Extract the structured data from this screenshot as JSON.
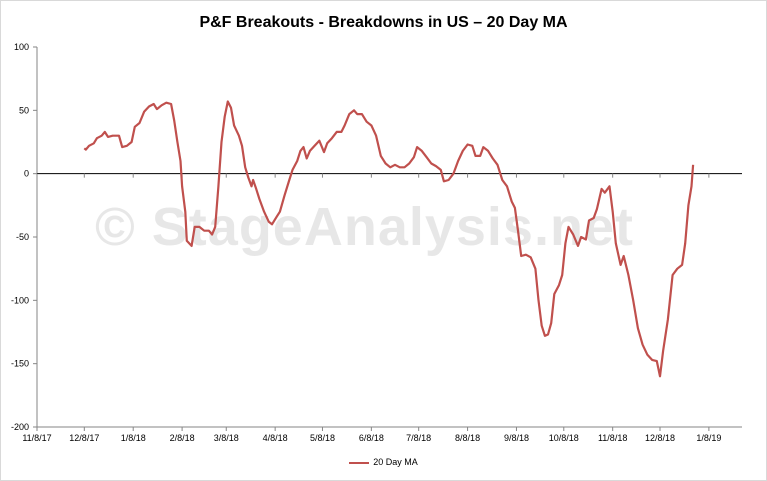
{
  "chart_data": {
    "type": "line",
    "title": "P&F Breakouts - Breakdowns in US – 20 Day MA",
    "watermark": "© StageAnalysis.net",
    "xlabel": "",
    "ylabel": "",
    "ylim": [
      -200,
      100
    ],
    "yticks": [
      100,
      50,
      0,
      -50,
      -100,
      -150,
      -200
    ],
    "xlim": [
      "2017-11-08",
      "2019-01-29"
    ],
    "xticks": [
      "11/8/17",
      "12/8/17",
      "1/8/18",
      "2/8/18",
      "3/8/18",
      "4/8/18",
      "5/8/18",
      "6/8/18",
      "7/8/18",
      "8/8/18",
      "9/8/18",
      "10/8/18",
      "11/8/18",
      "12/8/18",
      "1/8/19"
    ],
    "grid": false,
    "legend_position": "bottom",
    "color": "#c0504d",
    "series": [
      {
        "name": "20 Day MA",
        "points": [
          [
            "2017-12-08",
            20
          ],
          [
            "2017-12-09",
            19
          ],
          [
            "2017-12-11",
            22
          ],
          [
            "2017-12-14",
            24
          ],
          [
            "2017-12-16",
            28
          ],
          [
            "2017-12-19",
            30
          ],
          [
            "2017-12-21",
            33
          ],
          [
            "2017-12-23",
            29
          ],
          [
            "2017-12-26",
            30
          ],
          [
            "2017-12-30",
            30
          ],
          [
            "2018-01-01",
            21
          ],
          [
            "2018-01-04",
            22
          ],
          [
            "2018-01-07",
            25
          ],
          [
            "2018-01-09",
            37
          ],
          [
            "2018-01-12",
            40
          ],
          [
            "2018-01-15",
            49
          ],
          [
            "2018-01-18",
            53
          ],
          [
            "2018-01-21",
            55
          ],
          [
            "2018-01-23",
            51
          ],
          [
            "2018-01-26",
            54
          ],
          [
            "2018-01-29",
            56
          ],
          [
            "2018-02-01",
            55
          ],
          [
            "2018-02-03",
            42
          ],
          [
            "2018-02-05",
            25
          ],
          [
            "2018-02-07",
            10
          ],
          [
            "2018-02-08",
            -10
          ],
          [
            "2018-02-10",
            -30
          ],
          [
            "2018-02-11",
            -53
          ],
          [
            "2018-02-14",
            -57
          ],
          [
            "2018-02-16",
            -42
          ],
          [
            "2018-02-19",
            -42
          ],
          [
            "2018-02-22",
            -45
          ],
          [
            "2018-02-25",
            -45
          ],
          [
            "2018-02-27",
            -48
          ],
          [
            "2018-03-01",
            -42
          ],
          [
            "2018-03-03",
            -10
          ],
          [
            "2018-03-05",
            25
          ],
          [
            "2018-03-07",
            45
          ],
          [
            "2018-03-09",
            57
          ],
          [
            "2018-03-11",
            52
          ],
          [
            "2018-03-13",
            38
          ],
          [
            "2018-03-16",
            30
          ],
          [
            "2018-03-18",
            22
          ],
          [
            "2018-03-20",
            5
          ],
          [
            "2018-03-22",
            -3
          ],
          [
            "2018-03-24",
            -10
          ],
          [
            "2018-03-25",
            -5
          ],
          [
            "2018-03-27",
            -12
          ],
          [
            "2018-03-29",
            -20
          ],
          [
            "2018-04-01",
            -30
          ],
          [
            "2018-04-04",
            -38
          ],
          [
            "2018-04-06",
            -40
          ],
          [
            "2018-04-09",
            -34
          ],
          [
            "2018-04-11",
            -30
          ],
          [
            "2018-04-14",
            -17
          ],
          [
            "2018-04-17",
            -5
          ],
          [
            "2018-04-19",
            3
          ],
          [
            "2018-04-22",
            10
          ],
          [
            "2018-04-24",
            18
          ],
          [
            "2018-04-26",
            21
          ],
          [
            "2018-04-28",
            12
          ],
          [
            "2018-04-30",
            18
          ],
          [
            "2018-05-03",
            22
          ],
          [
            "2018-05-06",
            26
          ],
          [
            "2018-05-09",
            17
          ],
          [
            "2018-05-11",
            24
          ],
          [
            "2018-05-14",
            28
          ],
          [
            "2018-05-17",
            33
          ],
          [
            "2018-05-20",
            33
          ],
          [
            "2018-05-22",
            38
          ],
          [
            "2018-05-25",
            47
          ],
          [
            "2018-05-28",
            50
          ],
          [
            "2018-05-30",
            47
          ],
          [
            "2018-06-02",
            47
          ],
          [
            "2018-06-05",
            41
          ],
          [
            "2018-06-08",
            38
          ],
          [
            "2018-06-11",
            30
          ],
          [
            "2018-06-14",
            14
          ],
          [
            "2018-06-17",
            8
          ],
          [
            "2018-06-20",
            5
          ],
          [
            "2018-06-23",
            7
          ],
          [
            "2018-06-26",
            5
          ],
          [
            "2018-06-29",
            5
          ],
          [
            "2018-07-02",
            8
          ],
          [
            "2018-07-05",
            13
          ],
          [
            "2018-07-07",
            21
          ],
          [
            "2018-07-10",
            18
          ],
          [
            "2018-07-13",
            13
          ],
          [
            "2018-07-16",
            8
          ],
          [
            "2018-07-19",
            6
          ],
          [
            "2018-07-22",
            3
          ],
          [
            "2018-07-24",
            -6
          ],
          [
            "2018-07-27",
            -5
          ],
          [
            "2018-07-30",
            0
          ],
          [
            "2018-08-02",
            10
          ],
          [
            "2018-08-05",
            18
          ],
          [
            "2018-08-08",
            23
          ],
          [
            "2018-08-11",
            22
          ],
          [
            "2018-08-13",
            14
          ],
          [
            "2018-08-16",
            14
          ],
          [
            "2018-08-18",
            21
          ],
          [
            "2018-08-21",
            18
          ],
          [
            "2018-08-24",
            12
          ],
          [
            "2018-08-27",
            7
          ],
          [
            "2018-08-30",
            -5
          ],
          [
            "2018-09-02",
            -10
          ],
          [
            "2018-09-05",
            -22
          ],
          [
            "2018-09-07",
            -27
          ],
          [
            "2018-09-09",
            -45
          ],
          [
            "2018-09-11",
            -65
          ],
          [
            "2018-09-14",
            -64
          ],
          [
            "2018-09-17",
            -66
          ],
          [
            "2018-09-20",
            -75
          ],
          [
            "2018-09-22",
            -100
          ],
          [
            "2018-09-24",
            -120
          ],
          [
            "2018-09-26",
            -128
          ],
          [
            "2018-09-28",
            -127
          ],
          [
            "2018-09-30",
            -118
          ],
          [
            "2018-10-02",
            -95
          ],
          [
            "2018-10-05",
            -88
          ],
          [
            "2018-10-07",
            -80
          ],
          [
            "2018-10-09",
            -55
          ],
          [
            "2018-10-11",
            -42
          ],
          [
            "2018-10-14",
            -48
          ],
          [
            "2018-10-17",
            -57
          ],
          [
            "2018-10-19",
            -50
          ],
          [
            "2018-10-22",
            -52
          ],
          [
            "2018-10-24",
            -37
          ],
          [
            "2018-10-27",
            -35
          ],
          [
            "2018-10-29",
            -28
          ],
          [
            "2018-11-01",
            -12
          ],
          [
            "2018-11-03",
            -15
          ],
          [
            "2018-11-06",
            -10
          ],
          [
            "2018-11-08",
            -30
          ],
          [
            "2018-11-10",
            -55
          ],
          [
            "2018-11-13",
            -72
          ],
          [
            "2018-11-15",
            -65
          ],
          [
            "2018-11-18",
            -80
          ],
          [
            "2018-11-21",
            -100
          ],
          [
            "2018-11-24",
            -122
          ],
          [
            "2018-11-27",
            -135
          ],
          [
            "2018-11-30",
            -143
          ],
          [
            "2018-12-03",
            -147
          ],
          [
            "2018-12-06",
            -148
          ],
          [
            "2018-12-08",
            -160
          ],
          [
            "2018-12-10",
            -140
          ],
          [
            "2018-12-13",
            -115
          ],
          [
            "2018-12-16",
            -80
          ],
          [
            "2018-12-19",
            -75
          ],
          [
            "2018-12-22",
            -72
          ],
          [
            "2018-12-24",
            -55
          ],
          [
            "2018-12-26",
            -25
          ],
          [
            "2018-12-28",
            -10
          ],
          [
            "2018-12-29",
            7
          ]
        ]
      }
    ]
  }
}
